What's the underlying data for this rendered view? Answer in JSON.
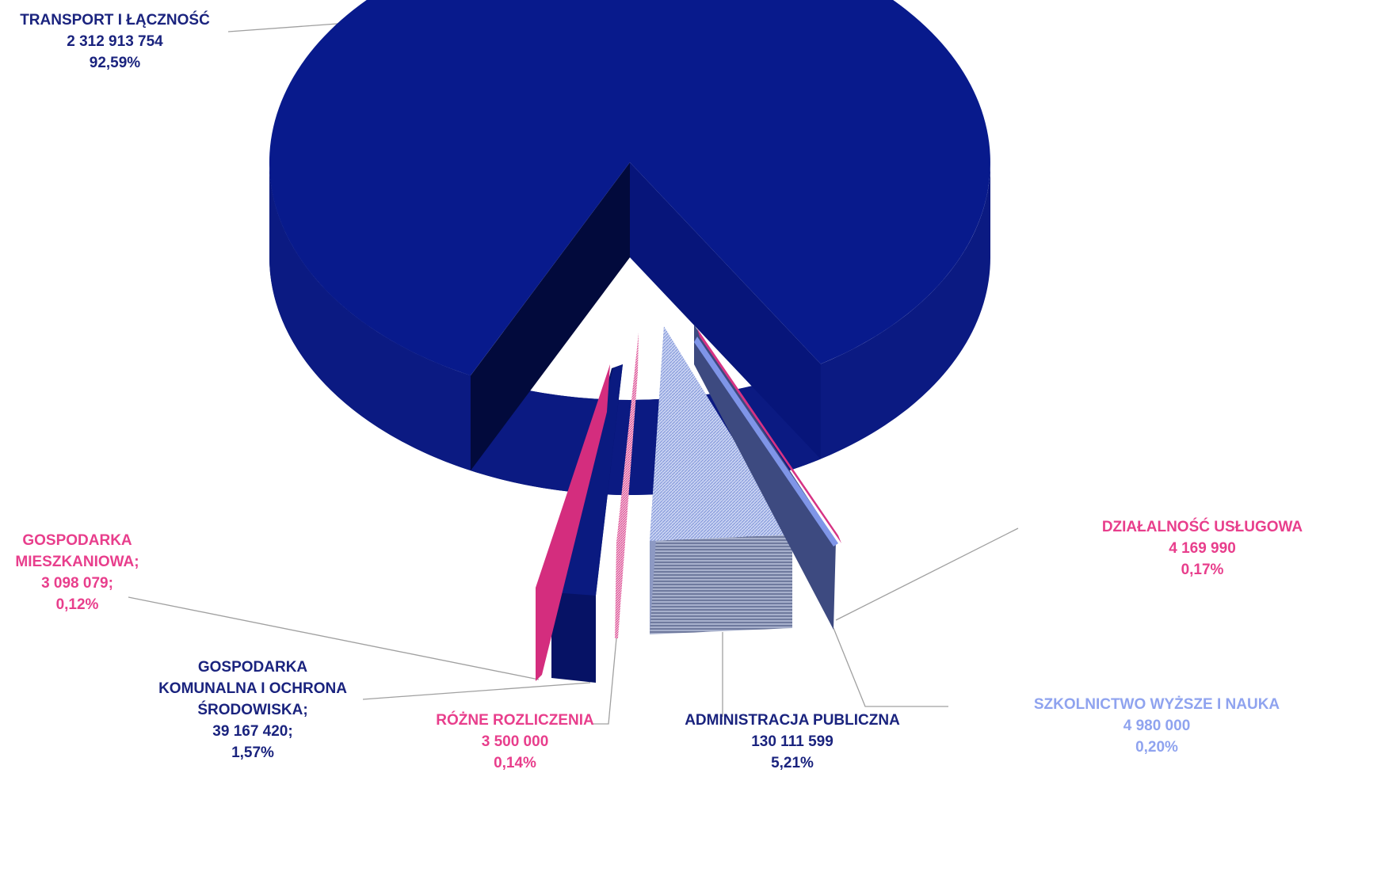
{
  "chart_data": {
    "type": "pie",
    "style": "3d-exploded",
    "slices": [
      {
        "name": "TRANSPORT I ŁĄCZNOŚĆ",
        "value": 2312913754,
        "percent": 92.59,
        "value_text": "2 312 913 754",
        "percent_text": "92,59%",
        "color": "#081a8c",
        "label_color": "#1a237e"
      },
      {
        "name": "DZIAŁALNOŚĆ USŁUGOWA",
        "value": 4169990,
        "percent": 0.17,
        "value_text": "4 169 990",
        "percent_text": "0,17%",
        "color": "#d63384",
        "label_color": "#e83e8c"
      },
      {
        "name": "SZKOLNICTWO WYŻSZE I NAUKA",
        "value": 4980000,
        "percent": 0.2,
        "value_text": "4 980 000",
        "percent_text": "0,20%",
        "color": "#7f95e8",
        "label_color": "#8fa3ef"
      },
      {
        "name": "ADMINISTRACJA PUBLICZNA",
        "value": 130111599,
        "percent": 5.21,
        "value_text": "130 111 599",
        "percent_text": "5,21%",
        "color": "#3d4a80",
        "label_color": "#1a237e"
      },
      {
        "name": "RÓŻNE ROZLICZENIA",
        "value": 3500000,
        "percent": 0.14,
        "value_text": "3 500 000",
        "percent_text": "0,14%",
        "color": "#e06aa0",
        "label_color": "#e83e8c"
      },
      {
        "name": "GOSPODARKA KOMUNALNA I OCHRONA ŚRODOWISKA",
        "value": 39167420,
        "percent": 1.57,
        "value_text": "39 167 420;",
        "percent_text": "1,57%",
        "color": "#0a1a80",
        "label_color": "#1a237e"
      },
      {
        "name": "GOSPODARKA MIESZKANIOWA",
        "value": 3098079,
        "percent": 0.12,
        "value_text": "3 098 079;",
        "percent_text": "0,12%",
        "color": "#d42d7e",
        "label_color": "#e83e8c"
      }
    ],
    "label_lines": {
      "TRANSPORT I ŁĄCZNOŚĆ": [
        "TRANSPORT I ŁĄCZNOŚĆ"
      ],
      "DZIAŁALNOŚĆ USŁUGOWA": [
        "DZIAŁALNOŚĆ USŁUGOWA"
      ],
      "SZKOLNICTWO WYŻSZE I NAUKA": [
        "SZKOLNICTWO WYŻSZE I NAUKA"
      ],
      "ADMINISTRACJA PUBLICZNA": [
        "ADMINISTRACJA PUBLICZNA"
      ],
      "RÓŻNE ROZLICZENIA": [
        "RÓŻNE ROZLICZENIA"
      ],
      "GOSPODARKA KOMUNALNA I OCHRONA ŚRODOWISKA": [
        "GOSPODARKA",
        "KOMUNALNA I OCHRONA",
        "ŚRODOWISKA;"
      ],
      "GOSPODARKA MIESZKANIOWA": [
        "GOSPODARKA",
        "MIESZKANIOWA;"
      ]
    }
  }
}
